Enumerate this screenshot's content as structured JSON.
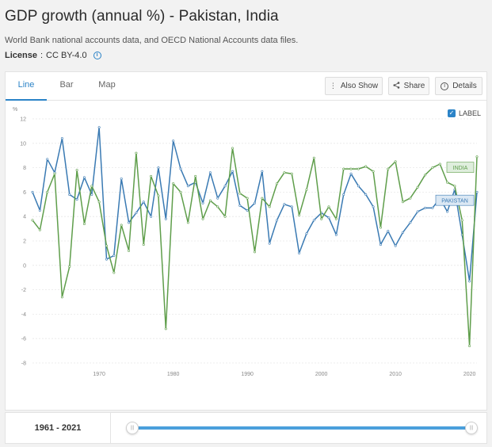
{
  "header": {
    "title": "GDP growth (annual %) - Pakistan, India",
    "source": "World Bank national accounts data, and OECD National Accounts data files.",
    "license_label": "License",
    "license_sep": " : ",
    "license_value": "CC BY-4.0",
    "info_icon": "i"
  },
  "tabs": [
    {
      "label": "Line",
      "active": true
    },
    {
      "label": "Bar",
      "active": false
    },
    {
      "label": "Map",
      "active": false
    }
  ],
  "toolbar": {
    "also_show": "Also Show",
    "share": "Share",
    "details": "Details"
  },
  "label_toggle": {
    "text": "LABEL",
    "checked": true
  },
  "footer": {
    "range": "1961 - 2021"
  },
  "colors": {
    "pakistan": "#3a7ab3",
    "india": "#5f9e4b",
    "accent": "#2b83c7"
  },
  "chart_data": {
    "type": "line",
    "ylabel": "%",
    "ylim": [
      -8,
      12
    ],
    "yticks": [
      -8,
      -6,
      -4,
      -2,
      0,
      2,
      4,
      6,
      8,
      10,
      12
    ],
    "xlim": [
      1961,
      2021
    ],
    "xticks": [
      1970,
      1980,
      1990,
      2000,
      2010,
      2020
    ],
    "grid": true,
    "x": [
      1961,
      1962,
      1963,
      1964,
      1965,
      1966,
      1967,
      1968,
      1969,
      1970,
      1971,
      1972,
      1973,
      1974,
      1975,
      1976,
      1977,
      1978,
      1979,
      1980,
      1981,
      1982,
      1983,
      1984,
      1985,
      1986,
      1987,
      1988,
      1989,
      1990,
      1991,
      1992,
      1993,
      1994,
      1995,
      1996,
      1997,
      1998,
      1999,
      2000,
      2001,
      2002,
      2003,
      2004,
      2005,
      2006,
      2007,
      2008,
      2009,
      2010,
      2011,
      2012,
      2013,
      2014,
      2015,
      2016,
      2017,
      2018,
      2019,
      2020,
      2021
    ],
    "series": [
      {
        "name": "PAKISTAN",
        "color": "#3a7ab3",
        "values": [
          6.0,
          4.5,
          8.7,
          7.6,
          10.4,
          5.8,
          5.4,
          7.2,
          5.8,
          11.3,
          0.5,
          0.8,
          7.1,
          3.5,
          4.3,
          5.2,
          4.0,
          8.0,
          3.8,
          10.2,
          7.9,
          6.5,
          6.8,
          5.1,
          7.6,
          5.5,
          6.5,
          7.7,
          4.9,
          4.5,
          5.1,
          7.7,
          1.8,
          3.7,
          5.0,
          4.8,
          1.0,
          2.6,
          3.7,
          4.3,
          3.9,
          2.5,
          5.8,
          7.5,
          6.5,
          5.8,
          4.8,
          1.7,
          2.8,
          1.6,
          2.7,
          3.5,
          4.4,
          4.7,
          4.7,
          5.5,
          4.4,
          6.2,
          2.5,
          -1.3,
          6.0
        ]
      },
      {
        "name": "INDIA",
        "color": "#5f9e4b",
        "values": [
          3.7,
          2.9,
          6.0,
          7.5,
          -2.6,
          -0.1,
          7.8,
          3.4,
          6.5,
          5.2,
          1.6,
          -0.6,
          3.3,
          1.2,
          9.2,
          1.7,
          7.3,
          5.7,
          -5.2,
          6.7,
          6.0,
          3.5,
          7.3,
          3.8,
          5.3,
          4.8,
          4.0,
          9.6,
          5.9,
          5.5,
          1.1,
          5.5,
          4.8,
          6.7,
          7.6,
          7.5,
          4.1,
          6.2,
          8.8,
          3.8,
          4.8,
          3.8,
          7.9,
          7.9,
          7.9,
          8.1,
          7.7,
          3.1,
          7.9,
          8.5,
          5.2,
          5.5,
          6.4,
          7.4,
          8.0,
          8.3,
          6.8,
          6.5,
          3.7,
          -6.6,
          8.9
        ]
      }
    ],
    "labels": [
      "INDIA",
      "PAKISTAN"
    ]
  }
}
